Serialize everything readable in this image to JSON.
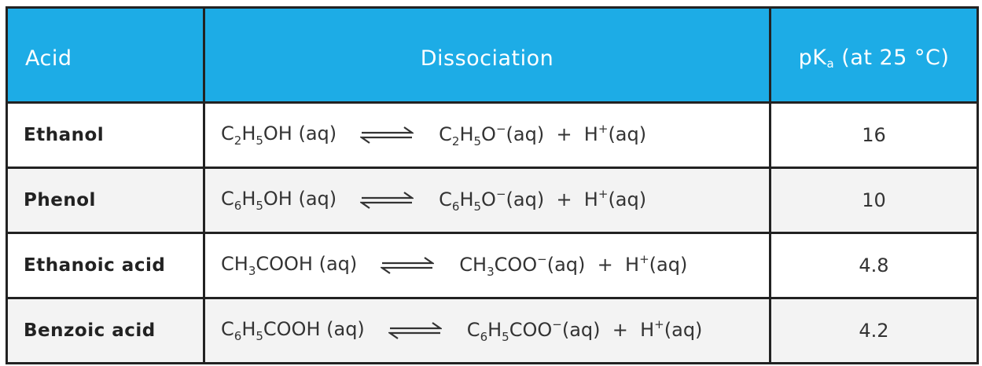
{
  "header": {
    "acid": "Acid",
    "dissociation": "Dissociation",
    "pka_prefix": "pK",
    "pka_sub": "a",
    "pka_suffix": " (at 25 °C)"
  },
  "colors": {
    "header_bg": "#1dace6",
    "alt_row": "#f3f3f3",
    "border": "#222222"
  },
  "rows": [
    {
      "acid": "Ethanol",
      "reactant": [
        {
          "t": "C"
        },
        {
          "sub": "2"
        },
        {
          "t": "H"
        },
        {
          "sub": "5"
        },
        {
          "t": "OH (aq)"
        }
      ],
      "products": [
        {
          "t": "C"
        },
        {
          "sub": "2"
        },
        {
          "t": "H"
        },
        {
          "sub": "5"
        },
        {
          "t": "O"
        },
        {
          "sup": "−"
        },
        {
          "t": "(aq)  +  H"
        },
        {
          "sup": "+"
        },
        {
          "t": "(aq)"
        }
      ],
      "arrow_icon": "equilibrium-arrow",
      "pka": "16"
    },
    {
      "acid": "Phenol",
      "reactant": [
        {
          "t": "C"
        },
        {
          "sub": "6"
        },
        {
          "t": "H"
        },
        {
          "sub": "5"
        },
        {
          "t": "OH (aq)"
        }
      ],
      "products": [
        {
          "t": "C"
        },
        {
          "sub": "6"
        },
        {
          "t": "H"
        },
        {
          "sub": "5"
        },
        {
          "t": "O"
        },
        {
          "sup": "−"
        },
        {
          "t": "(aq)  +  H"
        },
        {
          "sup": "+"
        },
        {
          "t": "(aq)"
        }
      ],
      "arrow_icon": "equilibrium-arrow",
      "pka": "10"
    },
    {
      "acid": "Ethanoic acid",
      "reactant": [
        {
          "t": "CH"
        },
        {
          "sub": "3"
        },
        {
          "t": "COOH (aq)"
        }
      ],
      "products": [
        {
          "t": "CH"
        },
        {
          "sub": "3"
        },
        {
          "t": "COO"
        },
        {
          "sup": "−"
        },
        {
          "t": "(aq)  +  H"
        },
        {
          "sup": "+"
        },
        {
          "t": "(aq)"
        }
      ],
      "arrow_icon": "equilibrium-arrow",
      "pka": "4.8"
    },
    {
      "acid": "Benzoic acid",
      "reactant": [
        {
          "t": "C"
        },
        {
          "sub": "6"
        },
        {
          "t": "H"
        },
        {
          "sub": "5"
        },
        {
          "t": "COOH (aq)"
        }
      ],
      "products": [
        {
          "t": "C"
        },
        {
          "sub": "6"
        },
        {
          "t": "H"
        },
        {
          "sub": "5"
        },
        {
          "t": "COO"
        },
        {
          "sup": "−"
        },
        {
          "t": "(aq)  +  H"
        },
        {
          "sup": "+"
        },
        {
          "t": "(aq)"
        }
      ],
      "arrow_icon": "equilibrium-arrow",
      "pka": "4.2"
    }
  ]
}
